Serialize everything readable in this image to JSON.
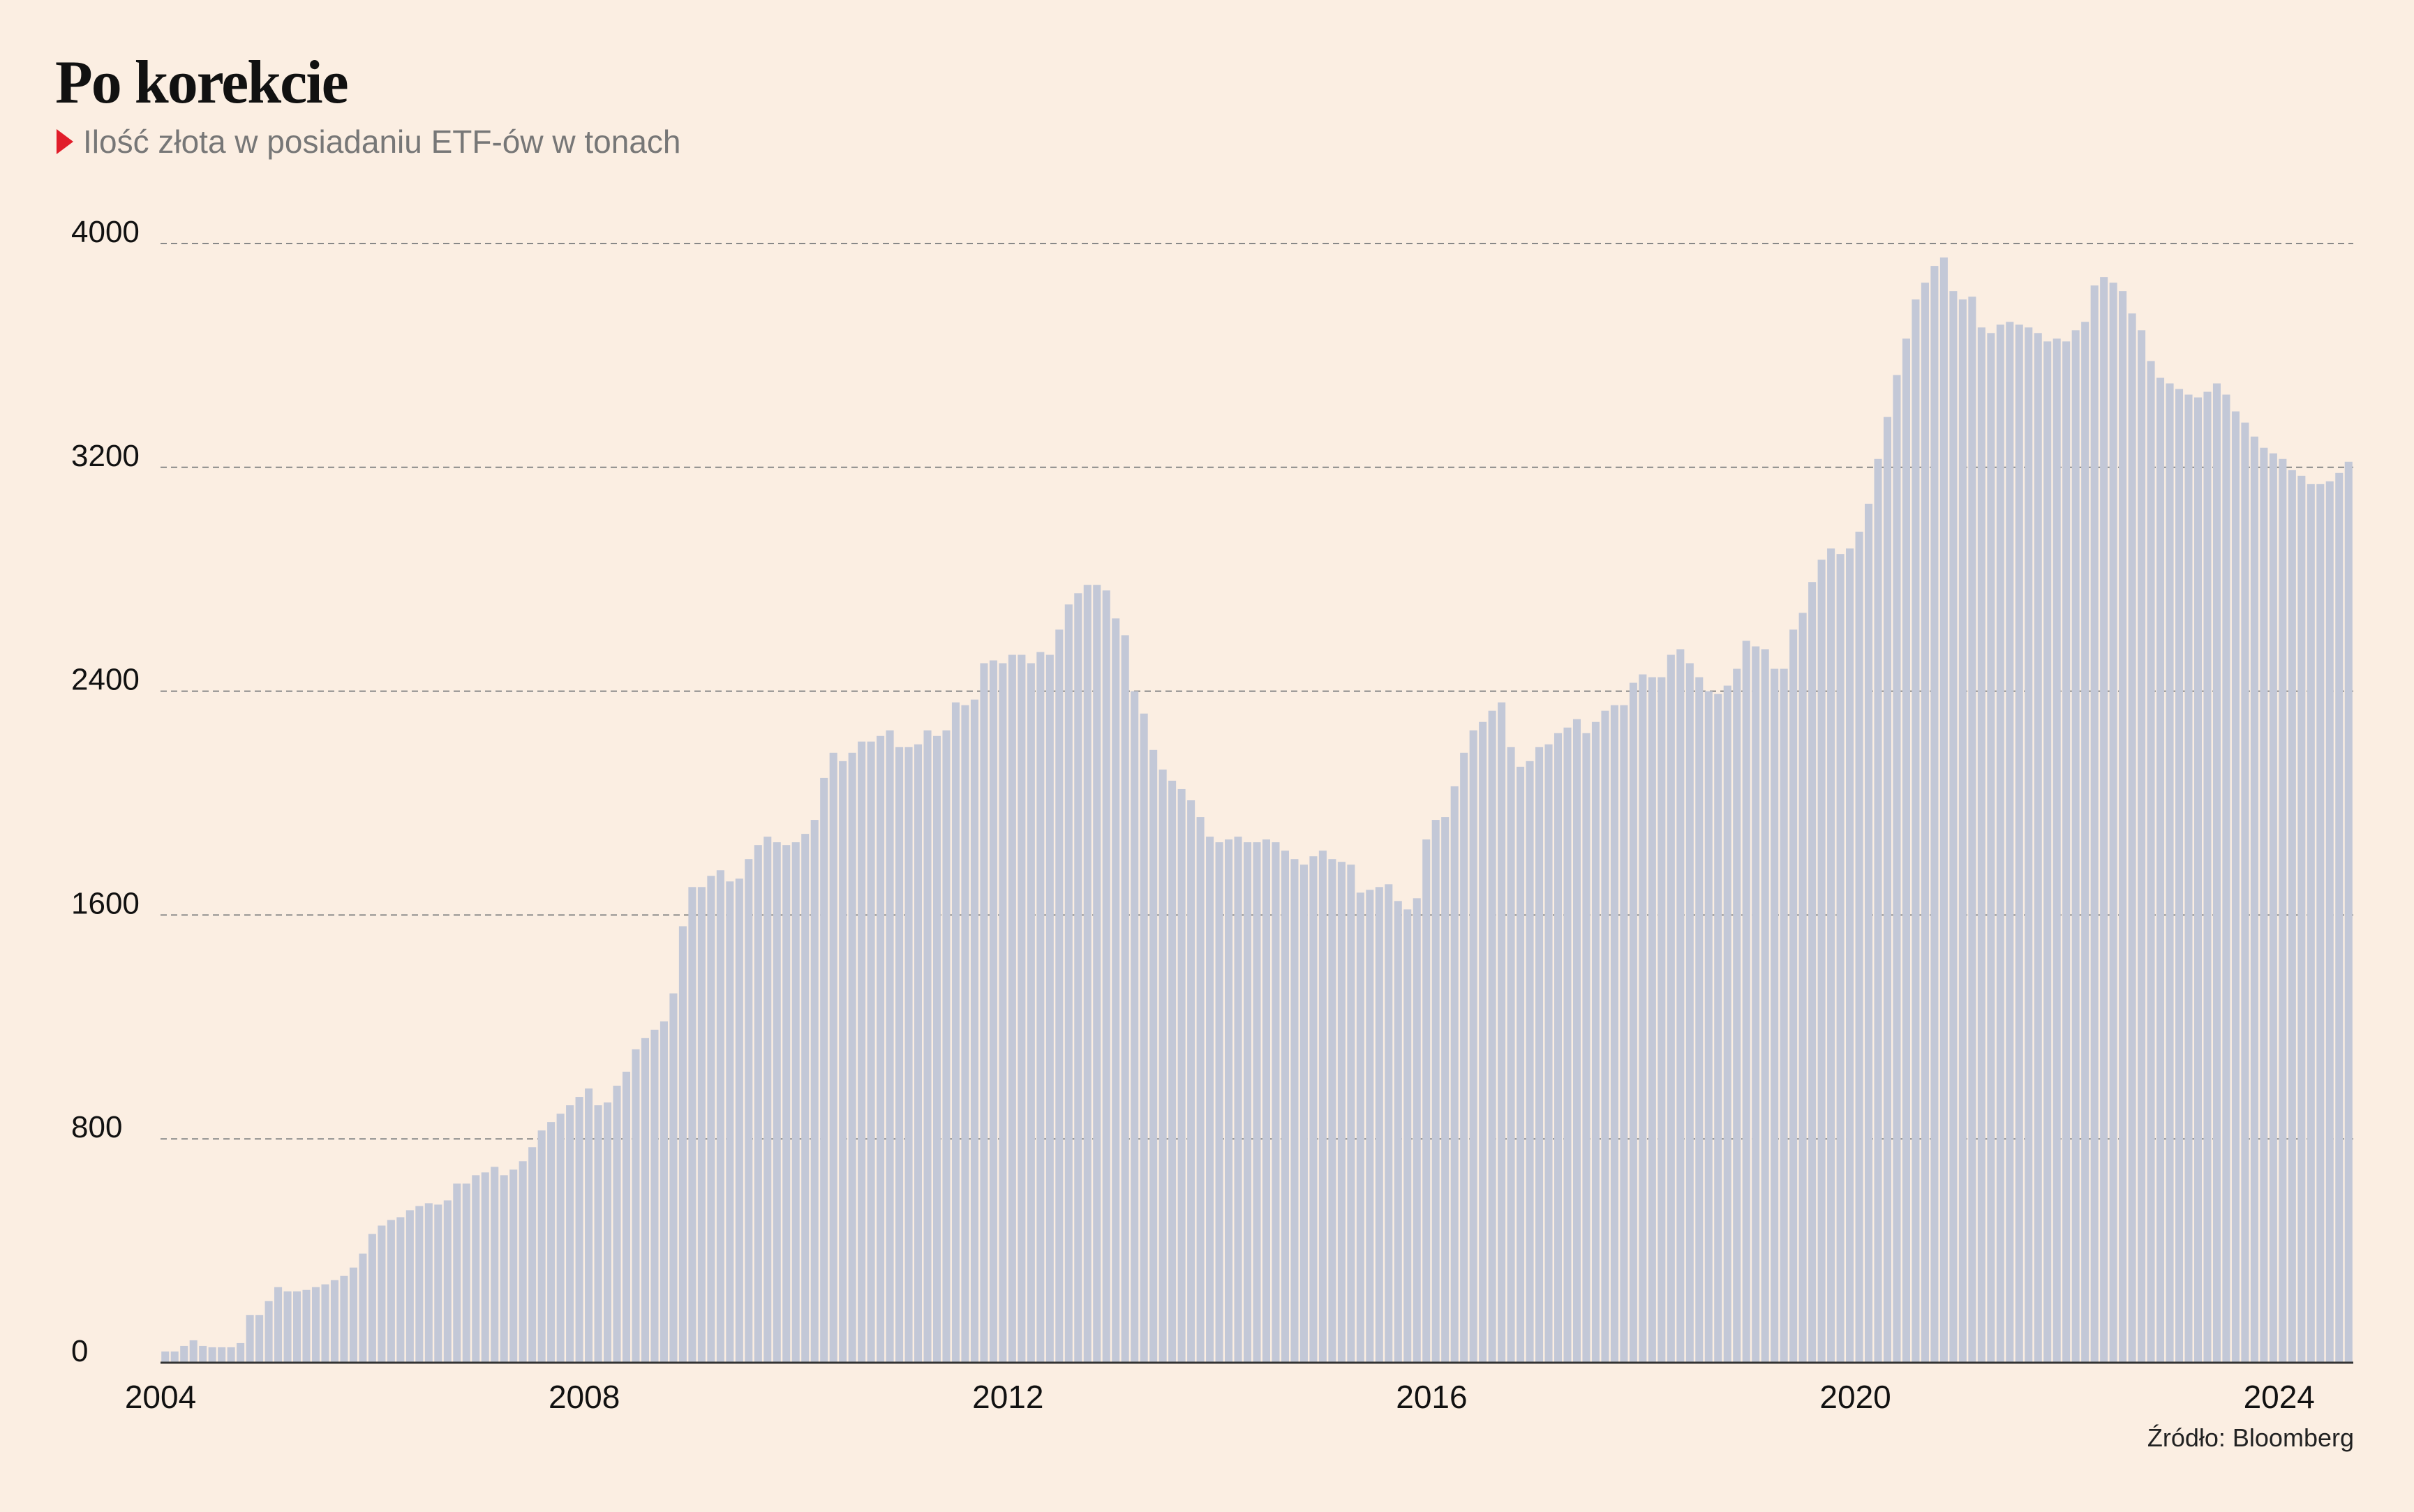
{
  "header": {
    "title": "Po korekcie",
    "subtitle": "Ilość złota w posiadaniu ETF-ów w tonach"
  },
  "footer": {
    "source": "Źródło: Bloomberg"
  },
  "colors": {
    "background": "#fbeee2",
    "bar": "#c3c8d7",
    "marker": "#e11d2a",
    "grid": "#888888",
    "axis": "#333333"
  },
  "chart_data": {
    "type": "bar",
    "title": "Po korekcie",
    "subtitle": "Ilość złota w posiadaniu ETF-ów w tonach",
    "xlabel": "",
    "ylabel": "",
    "ylim": [
      0,
      4000
    ],
    "yticks": [
      0,
      800,
      1600,
      2400,
      3200,
      4000
    ],
    "ytick_labels": [
      "0",
      "800",
      "1600",
      "2400",
      "3200",
      "4000"
    ],
    "xticks": [
      2004,
      2008,
      2012,
      2016,
      2020,
      2024
    ],
    "xtick_labels": [
      "2004",
      "2008",
      "2012",
      "2016",
      "2020",
      "2024"
    ],
    "x_start": 2004.0,
    "x_end": 2024.7,
    "grid": true,
    "legend": "none",
    "values": [
      40,
      40,
      60,
      80,
      60,
      55,
      55,
      55,
      70,
      170,
      170,
      220,
      270,
      255,
      255,
      260,
      270,
      280,
      295,
      310,
      340,
      390,
      460,
      490,
      510,
      520,
      545,
      560,
      570,
      565,
      580,
      640,
      640,
      670,
      680,
      700,
      670,
      690,
      720,
      770,
      830,
      860,
      890,
      920,
      950,
      980,
      920,
      930,
      990,
      1040,
      1120,
      1160,
      1190,
      1220,
      1320,
      1560,
      1700,
      1700,
      1740,
      1760,
      1720,
      1730,
      1800,
      1850,
      1880,
      1860,
      1850,
      1860,
      1890,
      1940,
      2090,
      2180,
      2150,
      2180,
      2220,
      2220,
      2240,
      2260,
      2200,
      2200,
      2210,
      2260,
      2240,
      2260,
      2360,
      2350,
      2370,
      2500,
      2510,
      2500,
      2530,
      2530,
      2500,
      2540,
      2530,
      2620,
      2710,
      2750,
      2780,
      2780,
      2760,
      2660,
      2600,
      2400,
      2320,
      2190,
      2120,
      2080,
      2050,
      2010,
      1950,
      1880,
      1860,
      1870,
      1880,
      1860,
      1860,
      1870,
      1860,
      1830,
      1800,
      1780,
      1810,
      1830,
      1800,
      1790,
      1780,
      1680,
      1690,
      1700,
      1710,
      1650,
      1620,
      1660,
      1870,
      1940,
      1950,
      2060,
      2180,
      2260,
      2290,
      2330,
      2360,
      2200,
      2130,
      2150,
      2200,
      2210,
      2250,
      2270,
      2300,
      2250,
      2290,
      2330,
      2350,
      2350,
      2430,
      2460,
      2450,
      2450,
      2530,
      2550,
      2500,
      2450,
      2400,
      2390,
      2420,
      2480,
      2580,
      2560,
      2550,
      2480,
      2480,
      2620,
      2680,
      2790,
      2870,
      2910,
      2890,
      2910,
      2970,
      3070,
      3230,
      3380,
      3530,
      3660,
      3800,
      3860,
      3920,
      3950,
      3830,
      3800,
      3810,
      3700,
      3680,
      3710,
      3720,
      3710,
      3700,
      3680,
      3650,
      3660,
      3650,
      3690,
      3720,
      3850,
      3880,
      3860,
      3830,
      3750,
      3690,
      3580,
      3520,
      3500,
      3480,
      3460,
      3450,
      3470,
      3500,
      3460,
      3400,
      3360,
      3310,
      3270,
      3250,
      3230,
      3190,
      3170,
      3140,
      3140,
      3150,
      3180,
      3220
    ]
  }
}
